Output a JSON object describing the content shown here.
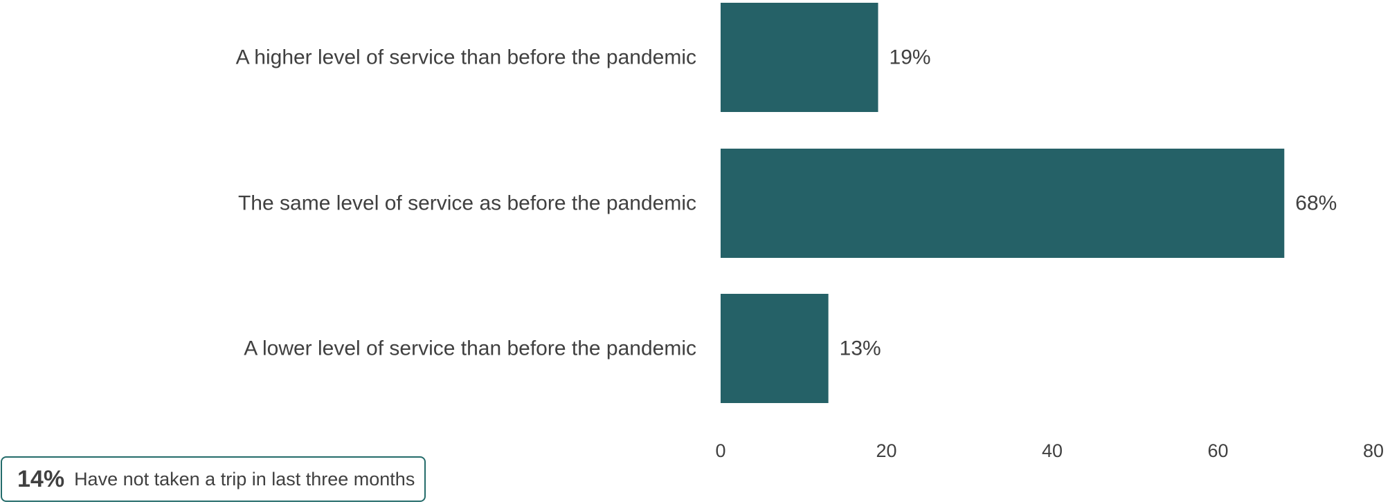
{
  "chart_data": {
    "type": "bar",
    "orientation": "horizontal",
    "categories": [
      "A higher level of service than before the pandemic",
      "The same level of service as before the pandemic",
      "A lower level of service than before the pandemic"
    ],
    "values": [
      19,
      68,
      13
    ],
    "data_labels": [
      "19%",
      "68%",
      "13%"
    ],
    "xlim": [
      0,
      80
    ],
    "x_ticks": [
      0,
      20,
      40,
      60,
      80
    ],
    "x_tick_labels": [
      "0",
      "20",
      "40",
      "60",
      "80"
    ],
    "grid": false,
    "legend": "none",
    "bar_color": "#256167",
    "title": "",
    "xlabel": "",
    "ylabel": ""
  },
  "note": {
    "value": "14%",
    "text": "Have not taken a trip in last three months",
    "border_color": "#236b6a"
  }
}
